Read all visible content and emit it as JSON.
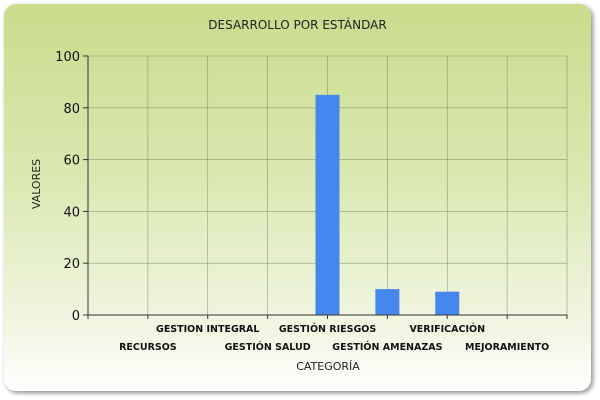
{
  "chart_data": {
    "type": "bar",
    "title": "DESARROLLO POR ESTÁNDAR",
    "xlabel": "CATEGORÍA",
    "ylabel": "VALORES",
    "ylim": [
      0,
      100
    ],
    "yticks": [
      0,
      20,
      40,
      60,
      80,
      100
    ],
    "grid": true,
    "categories": [
      "RECURSOS",
      "GESTION INTEGRAL",
      "GESTIÓN SALUD",
      "GESTIÓN RIESGOS",
      "GESTIÓN AMENAZAS",
      "VERIFICACIÓN",
      "MEJORAMIENTO"
    ],
    "values": [
      0,
      0,
      0,
      85,
      10,
      9,
      0
    ],
    "bar_color": "#4488ee"
  }
}
